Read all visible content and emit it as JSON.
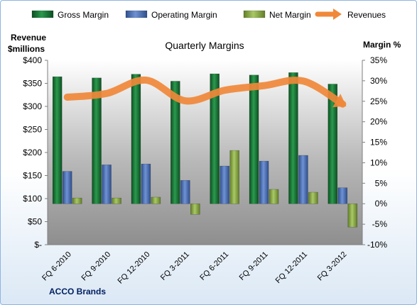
{
  "chart_data": {
    "type": "bar",
    "title": "Quarterly Margins",
    "y_left_label": [
      "Revenue",
      "$millions"
    ],
    "y_right_label": "Margin %",
    "footer_label": "ACCO Brands",
    "categories": [
      "FQ 6-2010",
      "FQ 9-2010",
      "FQ 12-2010",
      "FQ 3-2011",
      "FQ 6-2011",
      "FQ 9-2011",
      "FQ 12-2011",
      "FQ 3-2012"
    ],
    "y_left_range": [
      0,
      400
    ],
    "y_left_ticks": [
      "$-",
      "$50",
      "$100",
      "$150",
      "$200",
      "$250",
      "$300",
      "$350",
      "$400"
    ],
    "y_left_tick_values": [
      0,
      50,
      100,
      150,
      200,
      250,
      300,
      350,
      400
    ],
    "y_right_range": [
      -10,
      35
    ],
    "y_right_ticks": [
      "-10%",
      "-5%",
      "0%",
      "5%",
      "10%",
      "15%",
      "20%",
      "25%",
      "30%",
      "35%"
    ],
    "y_right_tick_values": [
      -10,
      -5,
      0,
      5,
      10,
      15,
      20,
      25,
      30,
      35
    ],
    "legend_position": "top",
    "grid": false,
    "series": [
      {
        "name": "Gross Margin",
        "kind": "bar",
        "axis": "right",
        "color": "#1e7a3c",
        "values": [
          31.0,
          30.7,
          31.6,
          29.9,
          31.7,
          31.4,
          32.0,
          29.2
        ]
      },
      {
        "name": "Operating Margin",
        "kind": "bar",
        "axis": "right",
        "color": "#4f73b8",
        "values": [
          7.9,
          9.5,
          9.7,
          5.7,
          9.2,
          10.4,
          11.8,
          3.9
        ]
      },
      {
        "name": "Net Margin",
        "kind": "bar",
        "axis": "right",
        "color": "#8fb04a",
        "values": [
          1.4,
          1.4,
          1.6,
          -2.6,
          13.0,
          3.5,
          2.8,
          -5.7
        ]
      },
      {
        "name": "Revenues",
        "kind": "line",
        "axis": "left",
        "color": "#f0883a",
        "values": [
          320,
          328,
          357,
          312,
          335,
          345,
          355,
          305
        ]
      }
    ]
  }
}
